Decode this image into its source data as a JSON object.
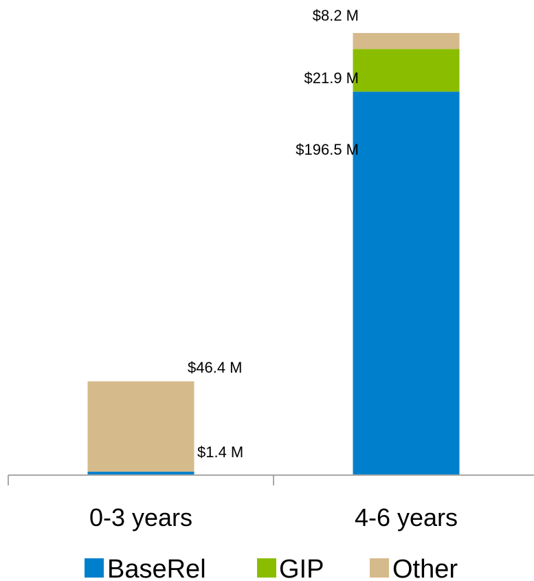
{
  "chart_data": {
    "type": "bar",
    "stacked": true,
    "categories": [
      "0-3 years",
      "4-6 years"
    ],
    "series": [
      {
        "name": "BaseRel",
        "color": "#0080cc",
        "values": [
          1.4,
          196.5
        ],
        "labels": [
          "$1.4 M",
          "$196.5 M"
        ]
      },
      {
        "name": "GIP",
        "color": "#8abd00",
        "values": [
          0,
          21.9
        ],
        "labels": [
          "",
          "$21.9 M"
        ]
      },
      {
        "name": "Other",
        "color": "#d5ba8c",
        "values": [
          46.4,
          8.2
        ],
        "labels": [
          "$46.4 M",
          "$8.2 M"
        ]
      }
    ],
    "ylim": [
      0,
      226.6
    ],
    "grid": false,
    "legend": "bottom"
  }
}
